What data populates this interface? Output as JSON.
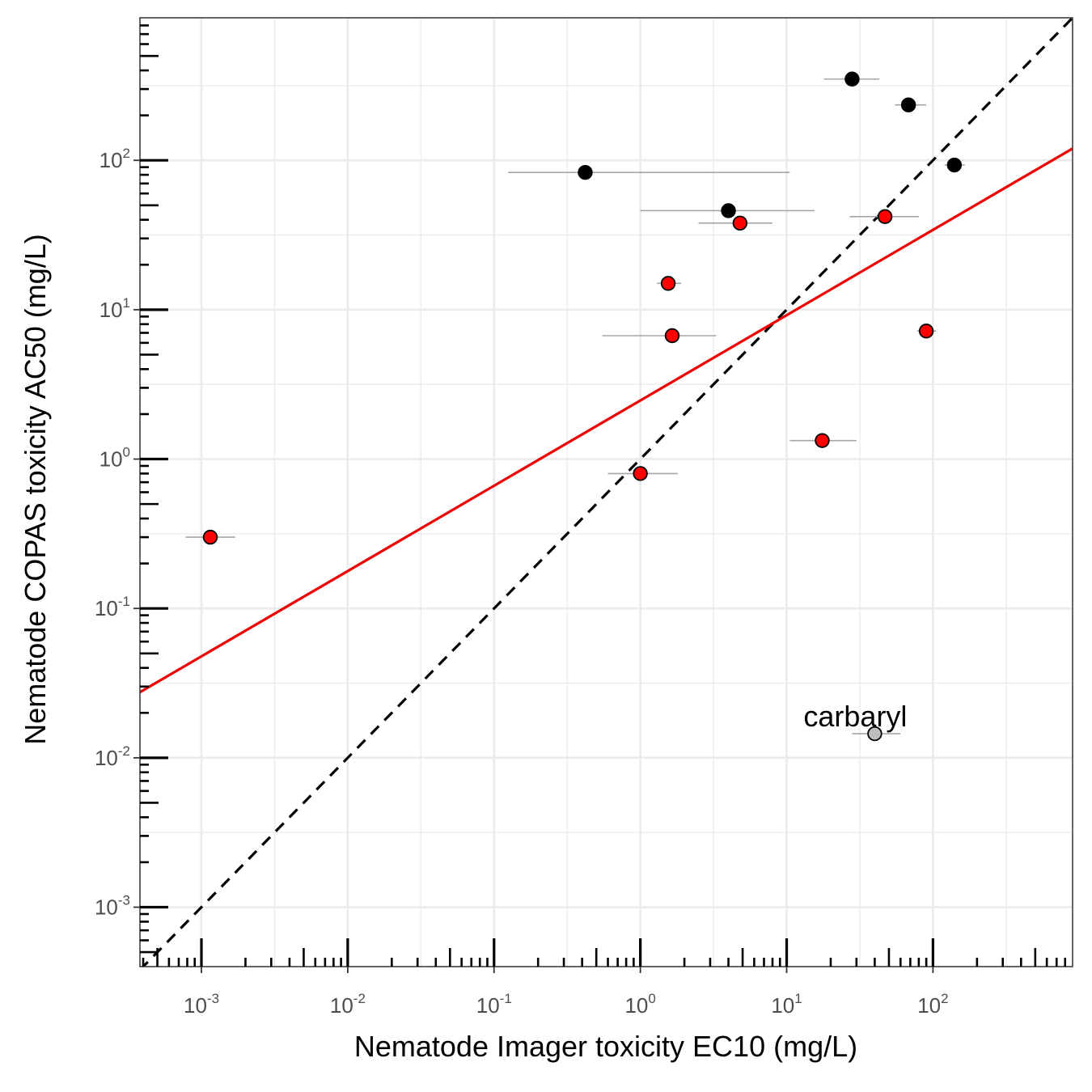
{
  "chart_data": {
    "type": "scatter",
    "title": "",
    "xlabel": "Nematode Imager toxicity EC10 (mg/L)",
    "ylabel": "Nematode COPAS toxicity AC50 (mg/L)",
    "x_scale": "log10",
    "y_scale": "log10",
    "xlim": [
      0.00038,
      900
    ],
    "ylim": [
      0.0004,
      900
    ],
    "x_ticks": [
      0.001,
      0.01,
      0.1,
      1,
      10,
      100
    ],
    "x_tick_labels": [
      {
        "base": "10",
        "exp": "-3"
      },
      {
        "base": "10",
        "exp": "-2"
      },
      {
        "base": "10",
        "exp": "-1"
      },
      {
        "base": "10",
        "exp": "0"
      },
      {
        "base": "10",
        "exp": "1"
      },
      {
        "base": "10",
        "exp": "2"
      }
    ],
    "y_ticks": [
      0.001,
      0.01,
      0.1,
      1,
      10,
      100
    ],
    "y_tick_labels": [
      {
        "base": "10",
        "exp": "-3"
      },
      {
        "base": "10",
        "exp": "-2"
      },
      {
        "base": "10",
        "exp": "-1"
      },
      {
        "base": "10",
        "exp": "0"
      },
      {
        "base": "10",
        "exp": "1"
      },
      {
        "base": "10",
        "exp": "2"
      }
    ],
    "grid": true,
    "colors": {
      "black_points": "#000000",
      "red_points": "#ff0000",
      "grey_points": "#bebebe",
      "error_bars": "#a6a6a6",
      "fit_line": "#ee0000",
      "identity_line": "#000000",
      "grid": "#ebebeb"
    },
    "series": [
      {
        "group": "black",
        "points": [
          {
            "x": 28,
            "y": 350,
            "xmin": 18,
            "xmax": 43
          },
          {
            "x": 68,
            "y": 235,
            "xmin": 55,
            "xmax": 90
          },
          {
            "x": 0.42,
            "y": 83,
            "xmin": 0.125,
            "xmax": 10.5
          },
          {
            "x": 140,
            "y": 93,
            "xmin": 120,
            "xmax": 165
          },
          {
            "x": 4.0,
            "y": 46,
            "xmin": 1.0,
            "xmax": 15.5
          }
        ]
      },
      {
        "group": "red",
        "points": [
          {
            "x": 4.8,
            "y": 38,
            "xmin": 2.5,
            "xmax": 8.0
          },
          {
            "x": 47,
            "y": 42,
            "xmin": 27,
            "xmax": 80
          },
          {
            "x": 1.55,
            "y": 15,
            "xmin": 1.3,
            "xmax": 1.9
          },
          {
            "x": 1.65,
            "y": 6.7,
            "xmin": 0.55,
            "xmax": 3.3
          },
          {
            "x": 90,
            "y": 7.2,
            "xmin": 78,
            "xmax": 105
          },
          {
            "x": 17.5,
            "y": 1.33,
            "xmin": 10.5,
            "xmax": 30
          },
          {
            "x": 1.0,
            "y": 0.8,
            "xmin": 0.6,
            "xmax": 1.8
          },
          {
            "x": 0.00115,
            "y": 0.3,
            "xmin": 0.00078,
            "xmax": 0.0017
          }
        ]
      },
      {
        "group": "grey",
        "points": [
          {
            "x": 40,
            "y": 0.0145,
            "xmin": 28,
            "xmax": 60,
            "label": "carbaryl"
          }
        ]
      }
    ],
    "lines": [
      {
        "kind": "identity",
        "style": "dashed",
        "x1": 0.00038,
        "y1": 0.00038,
        "x2": 900,
        "y2": 900
      },
      {
        "kind": "fit",
        "style": "solid",
        "x1": 0.00038,
        "y1": 0.0275,
        "x2": 900,
        "y2": 120
      }
    ]
  }
}
